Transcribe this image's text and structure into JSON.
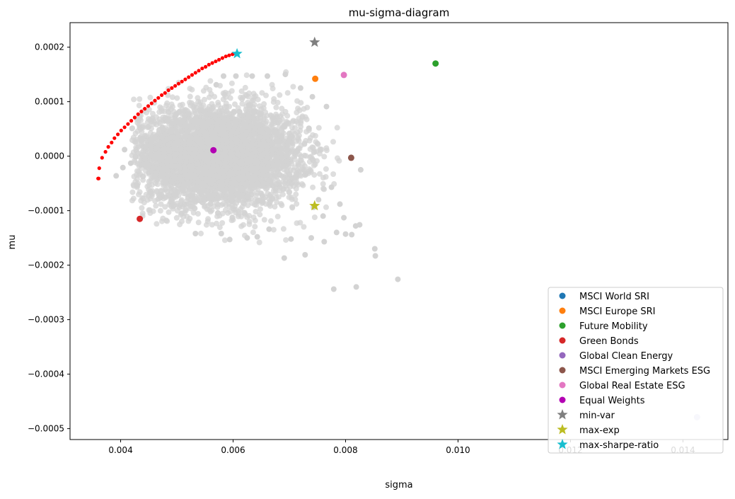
{
  "chart_data": {
    "type": "scatter",
    "title": "mu-sigma-diagram",
    "xlabel": "sigma",
    "ylabel": "mu",
    "xlim": [
      0.0031,
      0.0148
    ],
    "ylim": [
      -0.00052,
      0.000245
    ],
    "xticks": [
      {
        "value": 0.004,
        "label": "0.004"
      },
      {
        "value": 0.006,
        "label": "0.006"
      },
      {
        "value": 0.008,
        "label": "0.008"
      },
      {
        "value": 0.01,
        "label": "0.010"
      },
      {
        "value": 0.012,
        "label": "0.012"
      },
      {
        "value": 0.014,
        "label": "0.014"
      }
    ],
    "yticks": [
      {
        "value": 0.0002,
        "label": "0.0002"
      },
      {
        "value": 0.0001,
        "label": "0.0001"
      },
      {
        "value": 0.0,
        "label": "0.0000"
      },
      {
        "value": -0.0001,
        "label": "−0.0001"
      },
      {
        "value": -0.0002,
        "label": "−0.0002"
      },
      {
        "value": -0.0003,
        "label": "−0.0003"
      },
      {
        "value": -0.0004,
        "label": "−0.0004"
      },
      {
        "value": -0.0005,
        "label": "−0.0005"
      }
    ],
    "grid": false,
    "legend_position": "lower right",
    "random_portfolios": {
      "color": "#d3d3d3",
      "approx_count": 5000,
      "center": {
        "sigma": 0.0057,
        "mu": 0.0
      },
      "spread": {
        "sigma": 0.00075,
        "mu": 4.5e-05
      },
      "outliers": [
        {
          "sigma": 0.00893,
          "mu": -0.000226
        },
        {
          "sigma": 0.00852,
          "mu": -0.00017
        },
        {
          "sigma": 0.00853,
          "mu": -0.000183
        },
        {
          "sigma": 0.00819,
          "mu": -0.00024
        },
        {
          "sigma": 0.00779,
          "mu": -0.000244
        },
        {
          "sigma": 0.00691,
          "mu": -0.000187
        },
        {
          "sigma": 0.00728,
          "mu": -0.000181
        },
        {
          "sigma": 0.00827,
          "mu": -2.5e-05
        },
        {
          "sigma": 0.00766,
          "mu": 9.1e-05
        },
        {
          "sigma": 0.00811,
          "mu": -0.000144
        },
        {
          "sigma": 0.008,
          "mu": -0.000143
        },
        {
          "sigma": 0.00818,
          "mu": -0.000128
        },
        {
          "sigma": 0.00784,
          "mu": -0.00014
        },
        {
          "sigma": 0.00825,
          "mu": -0.000126
        },
        {
          "sigma": 0.0079,
          "mu": -8.8e-05
        },
        {
          "sigma": 0.00797,
          "mu": -0.000113
        },
        {
          "sigma": 0.00392,
          "mu": -3.6e-05
        },
        {
          "sigma": 0.00407,
          "mu": 1.2e-05
        },
        {
          "sigma": 0.00418,
          "mu": -1.3e-05
        },
        {
          "sigma": 0.00404,
          "mu": -2.1e-05
        },
        {
          "sigma": 0.0072,
          "mu": 0.000125
        },
        {
          "sigma": 0.00693,
          "mu": 0.00015
        },
        {
          "sigma": 0.00661,
          "mu": 0.000147
        },
        {
          "sigma": 0.00741,
          "mu": 0.000109
        },
        {
          "sigma": 0.00735,
          "mu": 5.1e-05
        },
        {
          "sigma": 0.00762,
          "mu": -0.000157
        },
        {
          "sigma": 0.0076,
          "mu": -0.00011
        },
        {
          "sigma": 0.00743,
          "mu": -9.4e-05
        },
        {
          "sigma": 0.00752,
          "mu": -8e-05
        },
        {
          "sigma": 0.00775,
          "mu": -5.7e-05
        },
        {
          "sigma": 0.00739,
          "mu": -0.00015
        },
        {
          "sigma": 0.00703,
          "mu": -0.000152
        },
        {
          "sigma": 0.00533,
          "mu": -0.000142
        },
        {
          "sigma": 0.00594,
          "mu": -0.000153
        },
        {
          "sigma": 0.00579,
          "mu": -0.000142
        },
        {
          "sigma": 0.00625,
          "mu": -0.00015
        },
        {
          "sigma": 0.00643,
          "mu": -0.000148
        },
        {
          "sigma": 0.00664,
          "mu": -0.000134
        },
        {
          "sigma": 0.00605,
          "mu": 0.000147
        },
        {
          "sigma": 0.00634,
          "mu": 0.000147
        },
        {
          "sigma": 0.00583,
          "mu": 0.000147
        },
        {
          "sigma": 0.0057,
          "mu": 0.000131
        }
      ]
    },
    "efficient_frontier": {
      "color": "#ff0000",
      "points": [
        {
          "sigma": 0.0036,
          "mu": -4.1e-05
        },
        {
          "sigma": 0.00361,
          "mu": -4.1e-05
        },
        {
          "sigma": 0.00362,
          "mu": -2.2e-05
        },
        {
          "sigma": 0.00367,
          "mu": -3e-06
        },
        {
          "sigma": 0.00373,
          "mu": 8e-06
        },
        {
          "sigma": 0.00378,
          "mu": 1.7e-05
        },
        {
          "sigma": 0.00384,
          "mu": 2.5e-05
        },
        {
          "sigma": 0.00389,
          "mu": 3.3e-05
        },
        {
          "sigma": 0.00395,
          "mu": 4e-05
        },
        {
          "sigma": 0.00401,
          "mu": 4.7e-05
        },
        {
          "sigma": 0.00407,
          "mu": 5.3e-05
        },
        {
          "sigma": 0.00413,
          "mu": 5.9e-05
        },
        {
          "sigma": 0.00419,
          "mu": 6.5e-05
        },
        {
          "sigma": 0.00425,
          "mu": 7.1e-05
        },
        {
          "sigma": 0.00431,
          "mu": 7.7e-05
        },
        {
          "sigma": 0.00437,
          "mu": 8.2e-05
        },
        {
          "sigma": 0.00443,
          "mu": 8.7e-05
        },
        {
          "sigma": 0.00449,
          "mu": 9.2e-05
        },
        {
          "sigma": 0.00455,
          "mu": 9.7e-05
        },
        {
          "sigma": 0.00461,
          "mu": 0.000102
        },
        {
          "sigma": 0.00467,
          "mu": 0.000107
        },
        {
          "sigma": 0.00473,
          "mu": 0.000112
        },
        {
          "sigma": 0.00479,
          "mu": 0.000116
        },
        {
          "sigma": 0.00485,
          "mu": 0.000121
        },
        {
          "sigma": 0.00491,
          "mu": 0.000125
        },
        {
          "sigma": 0.00497,
          "mu": 0.000129
        },
        {
          "sigma": 0.00503,
          "mu": 0.000133
        },
        {
          "sigma": 0.00509,
          "mu": 0.000137
        },
        {
          "sigma": 0.00515,
          "mu": 0.000141
        },
        {
          "sigma": 0.00521,
          "mu": 0.000145
        },
        {
          "sigma": 0.00527,
          "mu": 0.000149
        },
        {
          "sigma": 0.00533,
          "mu": 0.000153
        },
        {
          "sigma": 0.00539,
          "mu": 0.000157
        },
        {
          "sigma": 0.00545,
          "mu": 0.000161
        },
        {
          "sigma": 0.00551,
          "mu": 0.000164
        },
        {
          "sigma": 0.00557,
          "mu": 0.000168
        },
        {
          "sigma": 0.00563,
          "mu": 0.000171
        },
        {
          "sigma": 0.00569,
          "mu": 0.000174
        },
        {
          "sigma": 0.00575,
          "mu": 0.000177
        },
        {
          "sigma": 0.00581,
          "mu": 0.00018
        },
        {
          "sigma": 0.00587,
          "mu": 0.000183
        },
        {
          "sigma": 0.00593,
          "mu": 0.000185
        },
        {
          "sigma": 0.00599,
          "mu": 0.000187
        },
        {
          "sigma": 0.00605,
          "mu": 0.000188
        }
      ]
    },
    "series": [
      {
        "name": "MSCI World SRI",
        "marker": "circle",
        "color": "#1f77b4",
        "sigma": 0.01425,
        "mu": -0.000479
      },
      {
        "name": "MSCI Europe SRI",
        "marker": "circle",
        "color": "#ff7f0e",
        "sigma": 0.00746,
        "mu": 0.000142
      },
      {
        "name": "Future Mobility",
        "marker": "circle",
        "color": "#2ca02c",
        "sigma": 0.0096,
        "mu": 0.00017
      },
      {
        "name": "Green Bonds",
        "marker": "circle",
        "color": "#d62728",
        "sigma": 0.00434,
        "mu": -0.000115
      },
      {
        "name": "Global Clean Energy",
        "marker": "circle",
        "color": "#9467bd",
        "sigma": 0.01425,
        "mu": -0.000479
      },
      {
        "name": "MSCI Emerging Markets ESG",
        "marker": "circle",
        "color": "#8c564b",
        "sigma": 0.0081,
        "mu": -3e-06
      },
      {
        "name": "Global Real Estate ESG",
        "marker": "circle",
        "color": "#e377c2",
        "sigma": 0.00797,
        "mu": 0.000149
      },
      {
        "name": "Equal Weights",
        "marker": "circle",
        "color": "#b300b3",
        "sigma": 0.00565,
        "mu": 1.1e-05
      },
      {
        "name": "min-var",
        "marker": "star",
        "color": "#7f7f7f",
        "sigma": 0.00745,
        "mu": 0.000209
      },
      {
        "name": "max-exp",
        "marker": "star",
        "color": "#bcbd22",
        "sigma": 0.00745,
        "mu": -9.1e-05
      },
      {
        "name": "max-sharpe-ratio",
        "marker": "star",
        "color": "#17becf",
        "sigma": 0.00607,
        "mu": 0.000188
      }
    ]
  }
}
